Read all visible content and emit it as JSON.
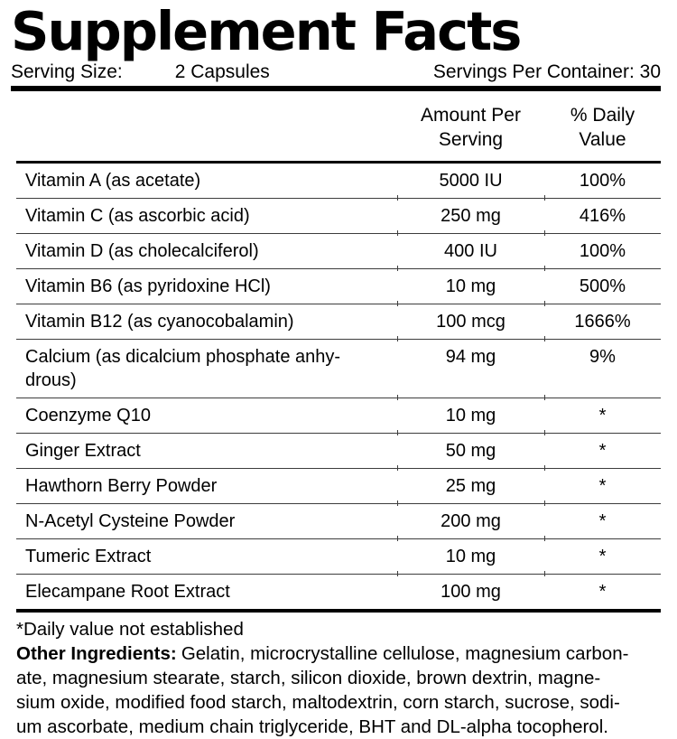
{
  "title": "Supplement Facts",
  "serving": {
    "size_label": "Serving Size:",
    "size_value": "2 Capsules",
    "per_container": "Servings Per Container: 30"
  },
  "table": {
    "headers": {
      "amount": "Amount Per\nServing",
      "daily_value": "% Daily\nValue"
    },
    "rows": [
      {
        "name": "Vitamin A (as acetate)",
        "amount": "5000 IU",
        "dv": "100%"
      },
      {
        "name": "Vitamin C (as ascorbic acid)",
        "amount": "250 mg",
        "dv": "416%"
      },
      {
        "name": "Vitamin D (as cholecalciferol)",
        "amount": "400 IU",
        "dv": "100%"
      },
      {
        "name": "Vitamin B6 (as pyridoxine HCl)",
        "amount": "10 mg",
        "dv": "500%"
      },
      {
        "name": "Vitamin B12 (as cyanocobalamin)",
        "amount": "100 mcg",
        "dv": "1666%"
      },
      {
        "name": "Calcium (as dicalcium phosphate anhy-\ndrous)",
        "amount": "94 mg",
        "dv": "9%"
      },
      {
        "name": "Coenzyme Q10",
        "amount": "10 mg",
        "dv": "*"
      },
      {
        "name": "Ginger Extract",
        "amount": "50 mg",
        "dv": "*"
      },
      {
        "name": "Hawthorn Berry Powder",
        "amount": "25 mg",
        "dv": "*"
      },
      {
        "name": "N-Acetyl Cysteine Powder",
        "amount": "200 mg",
        "dv": "*"
      },
      {
        "name": "Tumeric Extract",
        "amount": "10 mg",
        "dv": "*"
      },
      {
        "name": "Elecampane Root Extract",
        "amount": "100 mg",
        "dv": "*"
      }
    ]
  },
  "footer": {
    "note": "*Daily value not established",
    "other_ingredients_label": "Other Ingredients:",
    "other_ingredients_lines": [
      "Gelatin, microcrystalline cellulose, magnesium carbon-",
      "ate, magnesium stearate, starch, silicon dioxide, brown dextrin, magne-",
      "sium oxide, modified food starch, maltodextrin, corn starch, sucrose, sodi-",
      "um ascorbate, medium chain triglyceride, BHT and DL-alpha tocopherol."
    ]
  },
  "colors": {
    "text": "#000000",
    "background": "#ffffff",
    "divider": "#3d3d3d"
  }
}
